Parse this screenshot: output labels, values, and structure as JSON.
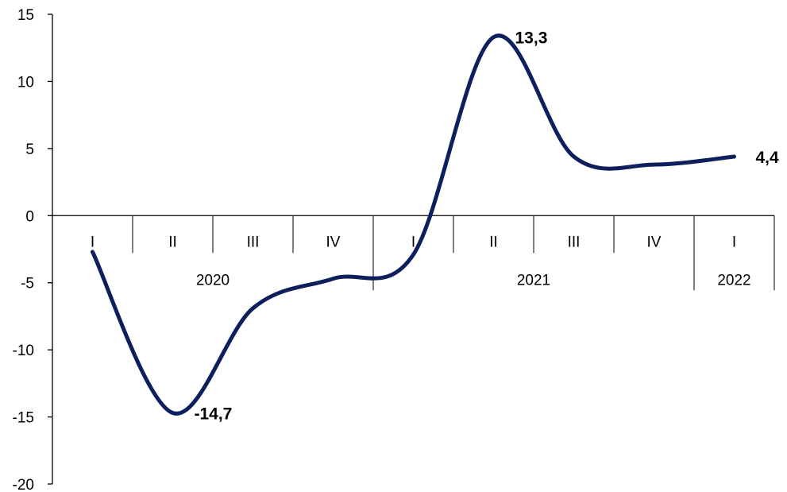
{
  "chart_data": {
    "type": "line",
    "title": "",
    "xlabel": "",
    "ylabel": "",
    "ylim": [
      -20,
      15
    ],
    "yticks": [
      15,
      10,
      5,
      0,
      -5,
      -10,
      -15,
      -20
    ],
    "grid": false,
    "legend": "none",
    "categories": [
      {
        "quarter": "I",
        "year": "2020"
      },
      {
        "quarter": "II",
        "year": "2020"
      },
      {
        "quarter": "III",
        "year": "2020"
      },
      {
        "quarter": "IV",
        "year": "2020"
      },
      {
        "quarter": "I",
        "year": "2021"
      },
      {
        "quarter": "II",
        "year": "2021"
      },
      {
        "quarter": "III",
        "year": "2021"
      },
      {
        "quarter": "IV",
        "year": "2021"
      },
      {
        "quarter": "I",
        "year": "2022"
      }
    ],
    "years": [
      {
        "label": "2020",
        "start": 0,
        "end": 3
      },
      {
        "label": "2021",
        "start": 4,
        "end": 7
      },
      {
        "label": "2022",
        "start": 8,
        "end": 8
      }
    ],
    "series": [
      {
        "color": "#0D1F5C",
        "values": [
          -2.7,
          -14.7,
          -6.9,
          -4.7,
          -2.9,
          13.3,
          4.4,
          3.8,
          4.4
        ],
        "data_labels": [
          {
            "index": 1,
            "text": "-14,7"
          },
          {
            "index": 5,
            "text": "13,3"
          },
          {
            "index": 8,
            "text": "4,4"
          }
        ]
      }
    ]
  }
}
